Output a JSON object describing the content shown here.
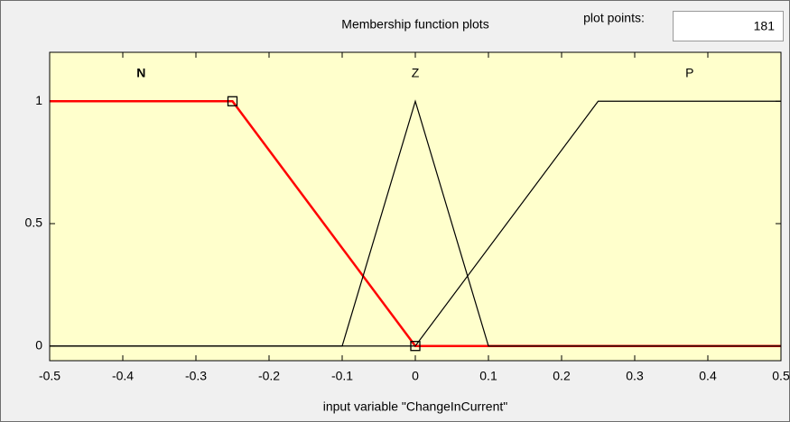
{
  "chart_data": {
    "type": "line",
    "title": "Membership function plots",
    "plot_points_label": "plot points:",
    "plot_points": 181,
    "xlabel": "input variable \"ChangeInCurrent\"",
    "xlim": [
      -0.5,
      0.5
    ],
    "ylim": [
      -0.06,
      1.2
    ],
    "xticks": [
      -0.5,
      -0.4,
      -0.3,
      -0.2,
      -0.1,
      0,
      0.1,
      0.2,
      0.3,
      0.4,
      0.5
    ],
    "yticks": [
      0,
      0.5,
      1
    ],
    "background": "#ffffcc",
    "series": [
      {
        "name": "N",
        "color": "#ff0000",
        "markers": true,
        "x": [
          -0.5,
          -0.25,
          0,
          0.5
        ],
        "values": [
          1,
          1,
          0,
          0
        ]
      },
      {
        "name": "Z",
        "color": "#000000",
        "markers": false,
        "x": [
          -0.5,
          -0.1,
          0,
          0.1,
          0.5
        ],
        "values": [
          0,
          0,
          1,
          0,
          0
        ]
      },
      {
        "name": "P",
        "color": "#000000",
        "markers": false,
        "x": [
          -0.5,
          0,
          0.25,
          0.5
        ],
        "values": [
          0,
          0,
          1,
          1
        ]
      }
    ]
  }
}
